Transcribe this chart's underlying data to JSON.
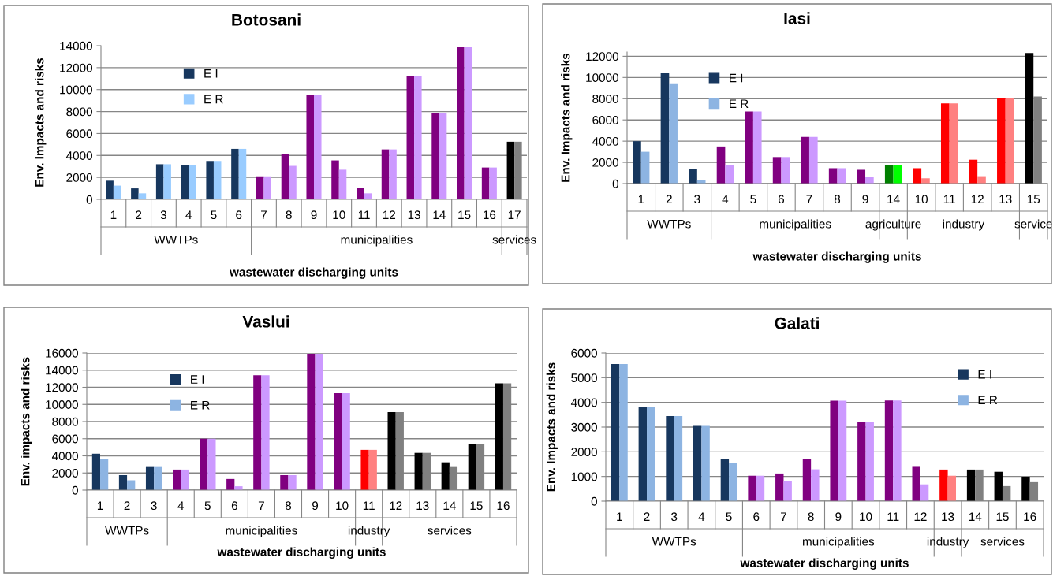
{
  "chart_data": [
    {
      "type": "bar",
      "title": "Botosani",
      "xlabel": "wastewater discharging units",
      "ylabel": "Env. Impacts and risks",
      "categories": [
        "1",
        "2",
        "3",
        "4",
        "5",
        "6",
        "7",
        "8",
        "9",
        "10",
        "11",
        "12",
        "13",
        "14",
        "15",
        "16",
        "17"
      ],
      "series": [
        {
          "name": "E I",
          "color": "#17375e",
          "values": [
            1700,
            1000,
            3200,
            3100,
            3500,
            4600,
            2100,
            4100,
            9550,
            3550,
            1050,
            4550,
            11200,
            7850,
            13850,
            2900,
            5250
          ],
          "colors": [
            "#17375e",
            "#17375e",
            "#17375e",
            "#17375e",
            "#17375e",
            "#17375e",
            "#800080",
            "#800080",
            "#800080",
            "#800080",
            "#800080",
            "#800080",
            "#800080",
            "#800080",
            "#800080",
            "#800080",
            "#000000"
          ]
        },
        {
          "name": "E R",
          "color": "#99ccff",
          "values": [
            1250,
            550,
            3200,
            3100,
            3500,
            4600,
            2100,
            3050,
            9550,
            2700,
            550,
            4550,
            11200,
            7850,
            13850,
            2900,
            5250
          ],
          "colors": [
            "#99ccff",
            "#99ccff",
            "#99ccff",
            "#99ccff",
            "#99ccff",
            "#99ccff",
            "#cc99ff",
            "#cc99ff",
            "#cc99ff",
            "#cc99ff",
            "#cc99ff",
            "#cc99ff",
            "#cc99ff",
            "#cc99ff",
            "#cc99ff",
            "#cc99ff",
            "#808080"
          ]
        }
      ],
      "annotations": [
        "WWTPs",
        "municipalities",
        "services"
      ],
      "ylim": [
        0,
        14000
      ],
      "yticks": [
        0,
        2000,
        4000,
        6000,
        8000,
        10000,
        12000,
        14000
      ],
      "grid": "y",
      "legend": "top"
    },
    {
      "type": "bar",
      "title": "Iasi",
      "xlabel": "wastewater discharging units",
      "ylabel": "Env. Impacts and risks",
      "categories": [
        "1",
        "2",
        "3",
        "4",
        "5",
        "6",
        "7",
        "8",
        "9",
        "14",
        "10",
        "11",
        "12",
        "13",
        "15"
      ],
      "series": [
        {
          "name": "E I",
          "color": "#17375e",
          "values": [
            4000,
            10400,
            1350,
            3500,
            6800,
            2500,
            4400,
            1450,
            1300,
            1750,
            1450,
            7550,
            2250,
            8100,
            12300
          ],
          "colors": [
            "#17375e",
            "#17375e",
            "#17375e",
            "#800080",
            "#800080",
            "#800080",
            "#800080",
            "#800080",
            "#800080",
            "#008000",
            "#ff0000",
            "#ff0000",
            "#ff0000",
            "#ff0000",
            "#000000"
          ]
        },
        {
          "name": "E R",
          "color": "#8db4e2",
          "values": [
            3000,
            9450,
            350,
            1750,
            6800,
            2500,
            4400,
            1450,
            650,
            1750,
            500,
            7550,
            700,
            8100,
            8200
          ],
          "colors": [
            "#8db4e2",
            "#8db4e2",
            "#8db4e2",
            "#cc99ff",
            "#cc99ff",
            "#cc99ff",
            "#cc99ff",
            "#cc99ff",
            "#cc99ff",
            "#00ff00",
            "#ff8080",
            "#ff8080",
            "#ff8080",
            "#ff8080",
            "#808080"
          ]
        }
      ],
      "annotations": [
        "WWTPs",
        "municipalities",
        "agriculture",
        "industry",
        "service"
      ],
      "ylim": [
        0,
        12400
      ],
      "yticks": [
        0,
        2000,
        4000,
        6000,
        8000,
        10000,
        12000
      ],
      "grid": "y",
      "legend": "top"
    },
    {
      "type": "bar",
      "title": "Vaslui",
      "xlabel": "wastewater discharging units",
      "ylabel": "Env. impacts and risks",
      "categories": [
        "1",
        "2",
        "3",
        "4",
        "5",
        "6",
        "7",
        "8",
        "9",
        "10",
        "11",
        "12",
        "13",
        "14",
        "15",
        "16"
      ],
      "series": [
        {
          "name": "E I",
          "color": "#17375e",
          "values": [
            4250,
            1750,
            2700,
            2400,
            6000,
            1300,
            13400,
            1750,
            15900,
            11300,
            4700,
            9100,
            4350,
            3250,
            5350,
            12450
          ],
          "colors": [
            "#17375e",
            "#17375e",
            "#17375e",
            "#800080",
            "#800080",
            "#800080",
            "#800080",
            "#800080",
            "#800080",
            "#800080",
            "#ff0000",
            "#000000",
            "#000000",
            "#000000",
            "#000000",
            "#000000"
          ]
        },
        {
          "name": "E R",
          "color": "#8db4e2",
          "values": [
            3600,
            1150,
            2700,
            2400,
            6000,
            450,
            13400,
            1750,
            15900,
            11300,
            4700,
            9100,
            4350,
            2700,
            5350,
            12450
          ],
          "colors": [
            "#8db4e2",
            "#8db4e2",
            "#8db4e2",
            "#cc99ff",
            "#cc99ff",
            "#cc99ff",
            "#cc99ff",
            "#cc99ff",
            "#cc99ff",
            "#cc99ff",
            "#ff8080",
            "#808080",
            "#808080",
            "#808080",
            "#808080",
            "#808080"
          ]
        }
      ],
      "annotations": [
        "WWTPs",
        "municipalities",
        "industry",
        "services"
      ],
      "ylim": [
        0,
        16000
      ],
      "yticks": [
        0,
        2000,
        4000,
        6000,
        8000,
        10000,
        12000,
        14000,
        16000
      ],
      "grid": "y",
      "legend": "top"
    },
    {
      "type": "bar",
      "title": "Galati",
      "xlabel": "wastewater discharging units",
      "ylabel": "Env. Impacts and risks",
      "categories": [
        "1",
        "2",
        "3",
        "4",
        "5",
        "6",
        "7",
        "8",
        "9",
        "10",
        "11",
        "12",
        "13",
        "14",
        "15",
        "16"
      ],
      "series": [
        {
          "name": "E I",
          "color": "#17375e",
          "values": [
            5550,
            3800,
            3450,
            3050,
            1700,
            1030,
            1120,
            1700,
            4070,
            3220,
            4080,
            1390,
            1280,
            1280,
            1190,
            990
          ],
          "colors": [
            "#17375e",
            "#17375e",
            "#17375e",
            "#17375e",
            "#17375e",
            "#800080",
            "#800080",
            "#800080",
            "#800080",
            "#800080",
            "#800080",
            "#800080",
            "#ff0000",
            "#000000",
            "#000000",
            "#000000"
          ]
        },
        {
          "name": "E R",
          "color": "#8db4e2",
          "values": [
            5550,
            3800,
            3450,
            3050,
            1550,
            1030,
            810,
            1290,
            4070,
            3220,
            4080,
            680,
            1030,
            1280,
            610,
            770
          ],
          "colors": [
            "#8db4e2",
            "#8db4e2",
            "#8db4e2",
            "#8db4e2",
            "#8db4e2",
            "#cc99ff",
            "#cc99ff",
            "#cc99ff",
            "#cc99ff",
            "#cc99ff",
            "#cc99ff",
            "#cc99ff",
            "#ff8080",
            "#808080",
            "#808080",
            "#808080"
          ]
        }
      ],
      "annotations": [
        "WWTPs",
        "municipalities",
        "industry",
        "services"
      ],
      "ylim": [
        0,
        6000
      ],
      "yticks": [
        0,
        1000,
        2000,
        3000,
        4000,
        5000,
        6000
      ],
      "grid": "y",
      "legend": "top right"
    }
  ]
}
